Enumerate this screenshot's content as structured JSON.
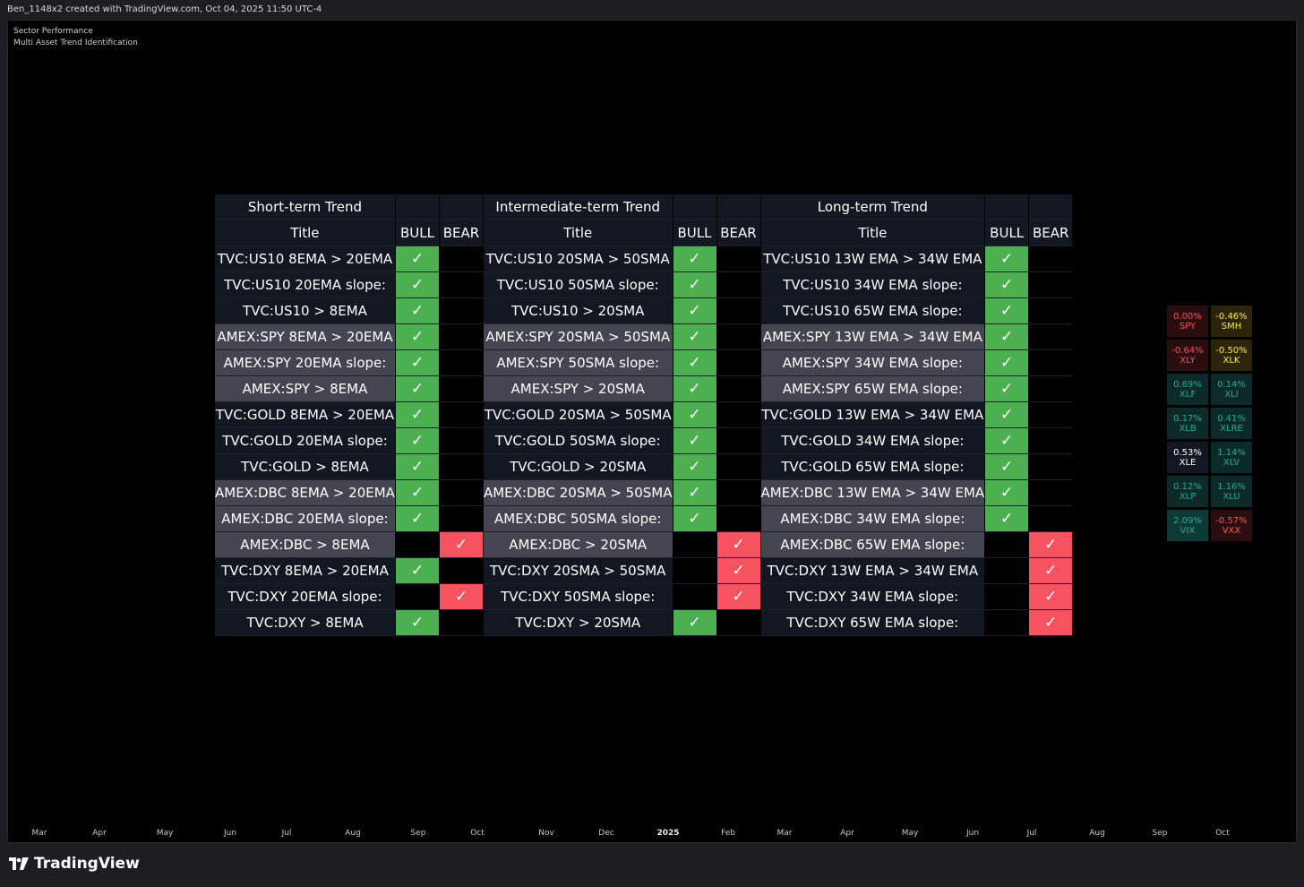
{
  "top_bar": {
    "text": "Ben_1148x2 created with TradingView.com, Oct 04, 2025 11:50 UTC-4"
  },
  "indicator": {
    "line1": "Sector Performance",
    "line2": "Multi Asset Trend Identification"
  },
  "table": {
    "sections": [
      {
        "header": "Short-term Trend",
        "bull": "BULL",
        "bear": "BEAR",
        "title": "Title"
      },
      {
        "header": "Intermediate-term Trend",
        "bull": "BULL",
        "bear": "BEAR",
        "title": "Title"
      },
      {
        "header": "Long-term Trend",
        "bull": "BULL",
        "bear": "BEAR",
        "title": "Title"
      }
    ],
    "check": "✓",
    "rows": [
      {
        "shade": "dark",
        "cells": [
          {
            "label": "TVC:US10 8EMA > 20EMA",
            "signal": "bull"
          },
          {
            "label": "TVC:US10 20SMA > 50SMA",
            "signal": "bull"
          },
          {
            "label": "TVC:US10 13W EMA > 34W EMA",
            "signal": "bull"
          }
        ]
      },
      {
        "shade": "dark",
        "cells": [
          {
            "label": "TVC:US10 20EMA slope:",
            "signal": "bull"
          },
          {
            "label": "TVC:US10 50SMA slope:",
            "signal": "bull"
          },
          {
            "label": "TVC:US10 34W EMA slope:",
            "signal": "bull"
          }
        ]
      },
      {
        "shade": "dark",
        "cells": [
          {
            "label": "TVC:US10 > 8EMA",
            "signal": "bull"
          },
          {
            "label": "TVC:US10 > 20SMA",
            "signal": "bull"
          },
          {
            "label": "TVC:US10 65W EMA slope:",
            "signal": "bull"
          }
        ]
      },
      {
        "shade": "grey",
        "cells": [
          {
            "label": "AMEX:SPY 8EMA > 20EMA",
            "signal": "bull"
          },
          {
            "label": "AMEX:SPY 20SMA > 50SMA",
            "signal": "bull"
          },
          {
            "label": "AMEX:SPY 13W EMA > 34W EMA",
            "signal": "bull"
          }
        ]
      },
      {
        "shade": "grey",
        "cells": [
          {
            "label": "AMEX:SPY 20EMA slope:",
            "signal": "bull"
          },
          {
            "label": "AMEX:SPY 50SMA slope:",
            "signal": "bull"
          },
          {
            "label": "AMEX:SPY 34W EMA slope:",
            "signal": "bull"
          }
        ]
      },
      {
        "shade": "grey",
        "cells": [
          {
            "label": "AMEX:SPY > 8EMA",
            "signal": "bull"
          },
          {
            "label": "AMEX:SPY > 20SMA",
            "signal": "bull"
          },
          {
            "label": "AMEX:SPY 65W EMA slope:",
            "signal": "bull"
          }
        ]
      },
      {
        "shade": "dark",
        "cells": [
          {
            "label": "TVC:GOLD 8EMA > 20EMA",
            "signal": "bull"
          },
          {
            "label": "TVC:GOLD 20SMA > 50SMA",
            "signal": "bull"
          },
          {
            "label": "TVC:GOLD 13W EMA > 34W EMA",
            "signal": "bull"
          }
        ]
      },
      {
        "shade": "dark",
        "cells": [
          {
            "label": "TVC:GOLD 20EMA slope:",
            "signal": "bull"
          },
          {
            "label": "TVC:GOLD 50SMA slope:",
            "signal": "bull"
          },
          {
            "label": "TVC:GOLD 34W EMA slope:",
            "signal": "bull"
          }
        ]
      },
      {
        "shade": "dark",
        "cells": [
          {
            "label": "TVC:GOLD > 8EMA",
            "signal": "bull"
          },
          {
            "label": "TVC:GOLD > 20SMA",
            "signal": "bull"
          },
          {
            "label": "TVC:GOLD 65W EMA slope:",
            "signal": "bull"
          }
        ]
      },
      {
        "shade": "grey",
        "cells": [
          {
            "label": "AMEX:DBC 8EMA > 20EMA",
            "signal": "bull"
          },
          {
            "label": "AMEX:DBC 20SMA > 50SMA",
            "signal": "bull"
          },
          {
            "label": "AMEX:DBC 13W EMA > 34W EMA",
            "signal": "bull"
          }
        ]
      },
      {
        "shade": "grey",
        "cells": [
          {
            "label": "AMEX:DBC 20EMA slope:",
            "signal": "bull"
          },
          {
            "label": "AMEX:DBC 50SMA slope:",
            "signal": "bull"
          },
          {
            "label": "AMEX:DBC 34W EMA slope:",
            "signal": "bull"
          }
        ]
      },
      {
        "shade": "grey",
        "cells": [
          {
            "label": "AMEX:DBC > 8EMA",
            "signal": "bear"
          },
          {
            "label": "AMEX:DBC > 20SMA",
            "signal": "bear"
          },
          {
            "label": "AMEX:DBC 65W EMA slope:",
            "signal": "bear"
          }
        ]
      },
      {
        "shade": "dark",
        "cells": [
          {
            "label": "TVC:DXY 8EMA > 20EMA",
            "signal": "bull"
          },
          {
            "label": "TVC:DXY 20SMA > 50SMA",
            "signal": "bear"
          },
          {
            "label": "TVC:DXY 13W EMA > 34W EMA",
            "signal": "bear"
          }
        ]
      },
      {
        "shade": "dark",
        "cells": [
          {
            "label": "TVC:DXY 20EMA slope:",
            "signal": "bear"
          },
          {
            "label": "TVC:DXY 50SMA slope:",
            "signal": "bear"
          },
          {
            "label": "TVC:DXY 34W EMA slope:",
            "signal": "bear"
          }
        ]
      },
      {
        "shade": "dark",
        "cells": [
          {
            "label": "TVC:DXY > 8EMA",
            "signal": "bull"
          },
          {
            "label": "TVC:DXY > 20SMA",
            "signal": "bull"
          },
          {
            "label": "TVC:DXY 65W EMA slope:",
            "signal": "bear"
          }
        ]
      }
    ]
  },
  "sectors": [
    {
      "pct": "0.00%",
      "ticker": "SPY",
      "bg": "#2a0d0e",
      "fg": "#f7525f"
    },
    {
      "pct": "-0.46%",
      "ticker": "SMH",
      "bg": "#2b2408",
      "fg": "#ffeb3b"
    },
    {
      "pct": "-0.64%",
      "ticker": "XLY",
      "bg": "#2a0d0e",
      "fg": "#f7525f"
    },
    {
      "pct": "-0.50%",
      "ticker": "XLK",
      "bg": "#2b2408",
      "fg": "#ffeb3b"
    },
    {
      "pct": "0.69%",
      "ticker": "XLF",
      "bg": "#0c2a27",
      "fg": "#22ab94"
    },
    {
      "pct": "0.14%",
      "ticker": "XLI",
      "bg": "#0c2a27",
      "fg": "#22ab94"
    },
    {
      "pct": "0.17%",
      "ticker": "XLB",
      "bg": "#0c2a27",
      "fg": "#22ab94"
    },
    {
      "pct": "0.41%",
      "ticker": "XLRE",
      "bg": "#0c2a27",
      "fg": "#22ab94"
    },
    {
      "pct": "0.53%",
      "ticker": "XLE",
      "bg": "#131722",
      "fg": "#ffffff"
    },
    {
      "pct": "1.14%",
      "ticker": "XLV",
      "bg": "#0c2a27",
      "fg": "#22ab94"
    },
    {
      "pct": "0.12%",
      "ticker": "XLP",
      "bg": "#0c2a27",
      "fg": "#22ab94"
    },
    {
      "pct": "1.16%",
      "ticker": "XLU",
      "bg": "#0c2a27",
      "fg": "#22ab94"
    },
    {
      "pct": "2.09%",
      "ticker": "VIX",
      "bg": "#0e3a36",
      "fg": "#22ab94"
    },
    {
      "pct": "-0.57%",
      "ticker": "VXX",
      "bg": "#2a0d0e",
      "fg": "#f7525f"
    }
  ],
  "x_axis": {
    "ticks": [
      {
        "label": "Mar",
        "bold": false
      },
      {
        "label": "Apr",
        "bold": false
      },
      {
        "label": "May",
        "bold": false
      },
      {
        "label": "Jun",
        "bold": false
      },
      {
        "label": "Jul",
        "bold": false
      },
      {
        "label": "Aug",
        "bold": false
      },
      {
        "label": "Sep",
        "bold": false
      },
      {
        "label": "Oct",
        "bold": false
      },
      {
        "label": "Nov",
        "bold": false
      },
      {
        "label": "Dec",
        "bold": false
      },
      {
        "label": "2025",
        "bold": true
      },
      {
        "label": "Feb",
        "bold": false
      },
      {
        "label": "Mar",
        "bold": false
      },
      {
        "label": "Apr",
        "bold": false
      },
      {
        "label": "May",
        "bold": false
      },
      {
        "label": "Jun",
        "bold": false
      },
      {
        "label": "Jul",
        "bold": false
      },
      {
        "label": "Aug",
        "bold": false
      },
      {
        "label": "Sep",
        "bold": false
      },
      {
        "label": "Oct",
        "bold": false
      }
    ]
  },
  "brand": {
    "name": "TradingView",
    "logo_icon": "tradingview-logo-icon"
  }
}
